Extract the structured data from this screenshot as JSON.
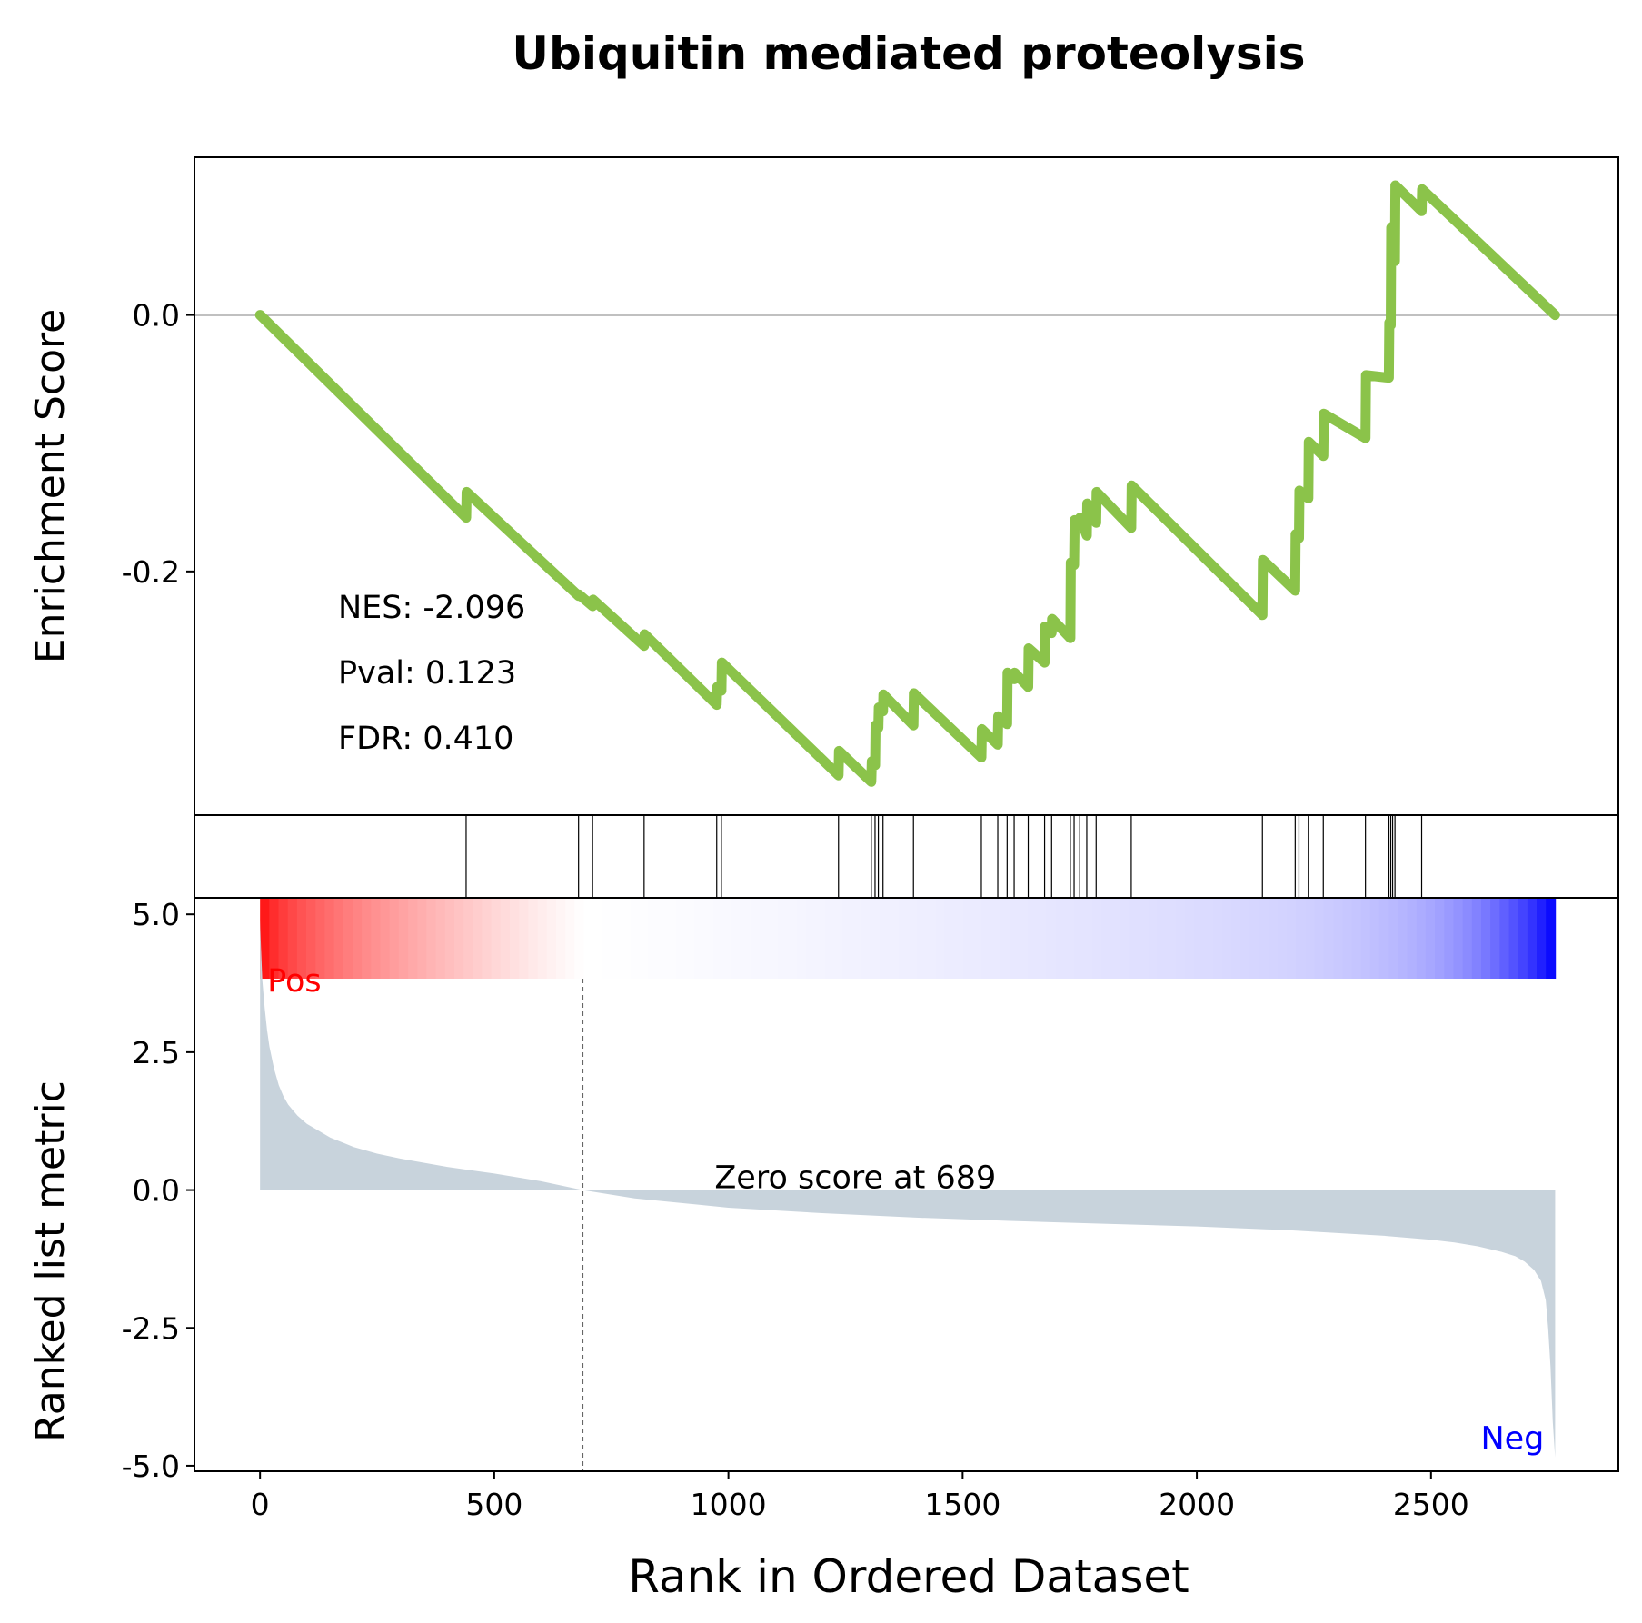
{
  "title": "Ubiquitin mediated proteolysis",
  "xlabel": "Rank in Ordered Dataset",
  "colors": {
    "es_line": "#8bc34a",
    "ranked_fill": "#c8d3dc",
    "pos_label": "#ff0000",
    "neg_label": "#0000ff",
    "zero_line": "#808080"
  },
  "chart_data": [
    {
      "type": "line",
      "panel": "enrichment-score",
      "ylabel": "Enrichment Score",
      "xlim": [
        -140,
        2900
      ],
      "ylim": [
        -0.39,
        0.123
      ],
      "yticks": [
        {
          "value": 0.0,
          "label": "0.0"
        },
        {
          "value": -0.2,
          "label": "-0.2"
        }
      ],
      "stats": [
        {
          "key": "nes",
          "text": "NES: -2.096"
        },
        {
          "key": "pval",
          "text": "Pval: 0.123"
        },
        {
          "key": "fdr",
          "text": "FDR: 0.410"
        }
      ],
      "x": [
        0,
        440,
        441,
        680,
        681,
        710,
        711,
        820,
        821,
        975,
        976,
        985,
        986,
        1235,
        1236,
        1305,
        1306,
        1313,
        1314,
        1320,
        1321,
        1330,
        1331,
        1395,
        1396,
        1540,
        1541,
        1575,
        1576,
        1595,
        1596,
        1610,
        1611,
        1640,
        1641,
        1675,
        1676,
        1690,
        1691,
        1730,
        1731,
        1738,
        1739,
        1750,
        1751,
        1765,
        1766,
        1785,
        1786,
        1860,
        1861,
        2140,
        2141,
        2210,
        2211,
        2218,
        2219,
        2238,
        2239,
        2270,
        2271,
        2360,
        2361,
        2410,
        2411,
        2414,
        2415,
        2418,
        2419,
        2423,
        2424,
        2480,
        2481,
        2765
      ],
      "y": [
        0.0,
        -0.158,
        -0.138,
        -0.219,
        -0.218,
        -0.227,
        -0.222,
        -0.258,
        -0.249,
        -0.304,
        -0.29,
        -0.293,
        -0.271,
        -0.359,
        -0.34,
        -0.364,
        -0.348,
        -0.351,
        -0.32,
        -0.322,
        -0.306,
        -0.309,
        -0.296,
        -0.32,
        -0.295,
        -0.345,
        -0.323,
        -0.335,
        -0.313,
        -0.319,
        -0.279,
        -0.284,
        -0.279,
        -0.29,
        -0.26,
        -0.271,
        -0.243,
        -0.248,
        -0.237,
        -0.252,
        -0.193,
        -0.195,
        -0.16,
        -0.164,
        -0.158,
        -0.172,
        -0.147,
        -0.162,
        -0.138,
        -0.166,
        -0.133,
        -0.234,
        -0.191,
        -0.215,
        -0.171,
        -0.174,
        -0.137,
        -0.143,
        -0.099,
        -0.11,
        -0.077,
        -0.096,
        -0.047,
        -0.049,
        -0.006,
        -0.008,
        0.068,
        0.069,
        0.065,
        0.042,
        0.101,
        0.081,
        0.098,
        0.0
      ]
    },
    {
      "type": "hits",
      "panel": "gene-hits",
      "x": [
        440,
        680,
        710,
        820,
        975,
        985,
        1235,
        1305,
        1313,
        1320,
        1330,
        1395,
        1540,
        1575,
        1595,
        1610,
        1640,
        1675,
        1690,
        1730,
        1738,
        1750,
        1765,
        1785,
        1860,
        2140,
        2210,
        2218,
        2238,
        2270,
        2360,
        2410,
        2414,
        2418,
        2423,
        2480
      ]
    },
    {
      "type": "area",
      "panel": "ranked-list-metric",
      "ylabel": "Ranked list metric",
      "xlim": [
        -140,
        2900
      ],
      "ylim": [
        -5.1,
        5.3
      ],
      "yticks": [
        {
          "value": 5.0,
          "label": "5.0"
        },
        {
          "value": 2.5,
          "label": "2.5"
        },
        {
          "value": 0.0,
          "label": "0.0"
        },
        {
          "value": -2.5,
          "label": "-2.5"
        },
        {
          "value": -5.0,
          "label": "-5.0"
        }
      ],
      "xticks": [
        {
          "value": 0,
          "label": "0"
        },
        {
          "value": 500,
          "label": "500"
        },
        {
          "value": 1000,
          "label": "1000"
        },
        {
          "value": 1500,
          "label": "1500"
        },
        {
          "value": 2000,
          "label": "2000"
        },
        {
          "value": 2500,
          "label": "2500"
        }
      ],
      "pos_label": "Pos",
      "neg_label": "Neg",
      "zero_score_rank": 689,
      "zero_score_text": "Zero score at 689",
      "x": [
        0,
        2,
        5,
        10,
        15,
        20,
        30,
        40,
        50,
        60,
        70,
        80,
        100,
        120,
        150,
        200,
        250,
        300,
        400,
        500,
        600,
        689,
        800,
        1000,
        1200,
        1400,
        1600,
        1800,
        2000,
        2200,
        2400,
        2500,
        2550,
        2600,
        2650,
        2680,
        2700,
        2720,
        2735,
        2745,
        2750,
        2755,
        2760,
        2765
      ],
      "y": [
        4.9,
        4.4,
        3.8,
        3.3,
        2.9,
        2.6,
        2.2,
        1.9,
        1.7,
        1.55,
        1.45,
        1.35,
        1.2,
        1.1,
        0.95,
        0.78,
        0.66,
        0.57,
        0.42,
        0.3,
        0.16,
        0.0,
        -0.15,
        -0.32,
        -0.42,
        -0.5,
        -0.56,
        -0.61,
        -0.66,
        -0.73,
        -0.83,
        -0.9,
        -0.95,
        -1.02,
        -1.12,
        -1.2,
        -1.3,
        -1.45,
        -1.65,
        -2.0,
        -2.5,
        -3.2,
        -4.2,
        -4.85
      ]
    }
  ]
}
